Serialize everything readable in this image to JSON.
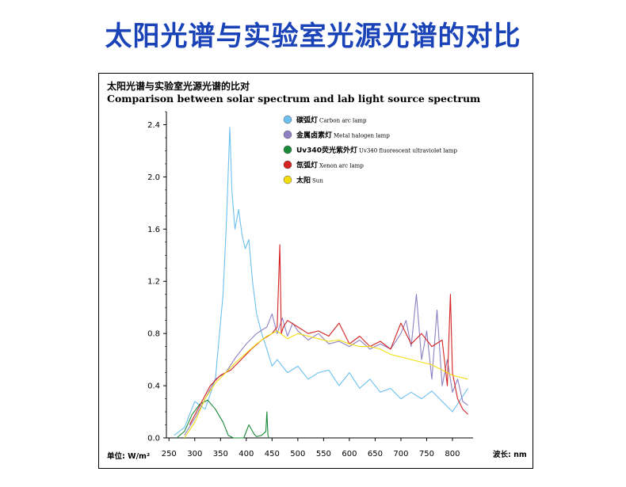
{
  "slide": {
    "title": "太阳光谱与实验室光源光谱的对比"
  },
  "chart_data": {
    "type": "line",
    "title": "太阳光谱与实验室光源光谱的比对",
    "subtitle": "Comparison between solar spectrum and lab light source spectrum",
    "xlabel": "波长: nm",
    "ylabel": "单位: W/m²",
    "xlim": [
      245,
      840
    ],
    "ylim": [
      0,
      2.5
    ],
    "xticks": [
      250,
      300,
      350,
      400,
      450,
      500,
      550,
      600,
      650,
      700,
      750,
      800
    ],
    "yticks": [
      0.0,
      0.4,
      0.8,
      1.2,
      1.6,
      2.0,
      2.4
    ],
    "ytick_labels": [
      "0.0",
      "0.4",
      "0.8",
      "1.2",
      "1.6",
      "2.0",
      "2.4"
    ],
    "grid": false,
    "legend_position": "top-left",
    "series": [
      {
        "name": "碳弧灯",
        "name_en": "Carbon arc lamp",
        "color": "#6ec0ef",
        "x": [
          260,
          280,
          300,
          320,
          340,
          355,
          362,
          368,
          372,
          378,
          385,
          392,
          398,
          405,
          412,
          420,
          430,
          440,
          450,
          460,
          480,
          500,
          520,
          540,
          560,
          580,
          600,
          620,
          640,
          660,
          680,
          700,
          720,
          740,
          760,
          780,
          800,
          820,
          830
        ],
        "values": [
          0.02,
          0.08,
          0.28,
          0.22,
          0.45,
          1.1,
          1.7,
          2.38,
          1.9,
          1.6,
          1.75,
          1.55,
          1.45,
          1.52,
          1.2,
          0.95,
          0.8,
          0.68,
          0.55,
          0.6,
          0.5,
          0.55,
          0.45,
          0.5,
          0.52,
          0.4,
          0.5,
          0.38,
          0.45,
          0.35,
          0.38,
          0.3,
          0.35,
          0.3,
          0.36,
          0.28,
          0.2,
          0.32,
          0.38
        ]
      },
      {
        "name": "金属卤素灯",
        "name_en": "Metal halogen lamp",
        "color": "#8f7fc4",
        "x": [
          280,
          300,
          320,
          340,
          360,
          380,
          400,
          420,
          440,
          450,
          460,
          470,
          480,
          490,
          500,
          520,
          540,
          560,
          580,
          600,
          620,
          640,
          660,
          680,
          700,
          710,
          720,
          730,
          740,
          750,
          760,
          770,
          780,
          790,
          800,
          810,
          820,
          830
        ],
        "values": [
          0.02,
          0.15,
          0.3,
          0.45,
          0.5,
          0.62,
          0.72,
          0.8,
          0.85,
          0.95,
          0.8,
          0.92,
          0.78,
          0.88,
          0.82,
          0.75,
          0.8,
          0.72,
          0.74,
          0.7,
          0.75,
          0.68,
          0.72,
          0.68,
          0.8,
          0.9,
          0.7,
          1.1,
          0.6,
          0.82,
          0.45,
          0.98,
          0.4,
          0.6,
          0.35,
          0.45,
          0.28,
          0.25
        ]
      },
      {
        "name": "Uv340荧光紫外灯",
        "name_en": "Uv340 fluorescent ultraviolet lamp",
        "color": "#1a8a3a",
        "x": [
          265,
          280,
          295,
          310,
          325,
          340,
          355,
          365,
          375,
          385,
          395,
          405,
          415,
          420,
          430,
          438,
          440,
          442,
          444
        ],
        "values": [
          0.0,
          0.05,
          0.18,
          0.26,
          0.29,
          0.22,
          0.12,
          0.02,
          0.0,
          0.0,
          0.0,
          0.1,
          0.03,
          0.01,
          0.02,
          0.05,
          0.2,
          0.02,
          0.0
        ]
      },
      {
        "name": "氙弧灯",
        "name_en": "Xenon arc lamp",
        "color": "#d42222",
        "x": [
          290,
          310,
          330,
          350,
          370,
          390,
          410,
          430,
          450,
          460,
          465,
          468,
          472,
          480,
          500,
          520,
          540,
          560,
          580,
          600,
          620,
          640,
          660,
          680,
          700,
          720,
          740,
          760,
          780,
          790,
          796,
          800,
          810,
          820,
          830
        ],
        "values": [
          0.1,
          0.25,
          0.4,
          0.48,
          0.52,
          0.6,
          0.68,
          0.75,
          0.8,
          0.85,
          1.48,
          0.8,
          0.85,
          0.9,
          0.85,
          0.8,
          0.82,
          0.78,
          0.88,
          0.72,
          0.78,
          0.7,
          0.74,
          0.68,
          0.88,
          0.72,
          0.8,
          0.7,
          0.75,
          0.4,
          1.1,
          0.5,
          0.3,
          0.22,
          0.18
        ]
      },
      {
        "name": "太阳",
        "name_en": "Sun",
        "color": "#f2dd10",
        "x": [
          280,
          300,
          320,
          340,
          360,
          380,
          400,
          420,
          440,
          460,
          480,
          500,
          520,
          540,
          560,
          580,
          600,
          620,
          640,
          660,
          680,
          700,
          720,
          740,
          760,
          780,
          800,
          820,
          830
        ],
        "values": [
          0.0,
          0.12,
          0.3,
          0.42,
          0.5,
          0.58,
          0.65,
          0.72,
          0.78,
          0.82,
          0.76,
          0.8,
          0.78,
          0.76,
          0.74,
          0.75,
          0.72,
          0.7,
          0.7,
          0.68,
          0.64,
          0.62,
          0.6,
          0.58,
          0.56,
          0.52,
          0.48,
          0.46,
          0.45
        ]
      }
    ]
  }
}
